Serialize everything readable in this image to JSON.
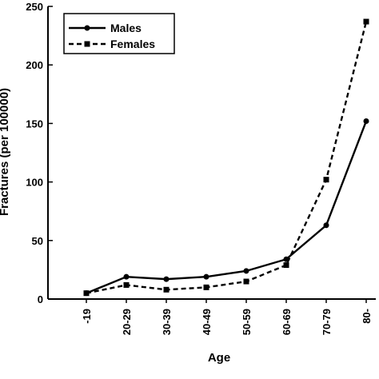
{
  "chart_data": {
    "type": "line",
    "title": "",
    "xlabel": "Age",
    "ylabel": "Fractures (per 100000)",
    "categories": [
      "-19",
      "20-29",
      "30-39",
      "40-49",
      "50-59",
      "60-69",
      "70-79",
      "80-"
    ],
    "ylim": [
      0,
      250
    ],
    "yticks": [
      0,
      50,
      100,
      150,
      200,
      250
    ],
    "grid": false,
    "legend_position": "top-left",
    "series": [
      {
        "name": "Males",
        "line_style": "solid",
        "marker": "circle",
        "values": [
          5,
          19,
          17,
          19,
          24,
          34,
          63,
          152
        ]
      },
      {
        "name": "Females",
        "line_style": "dashed",
        "marker": "square",
        "values": [
          5,
          12,
          8,
          10,
          15,
          29,
          102,
          237
        ]
      }
    ],
    "colors": {
      "line": "#000000",
      "background": "#ffffff"
    }
  }
}
